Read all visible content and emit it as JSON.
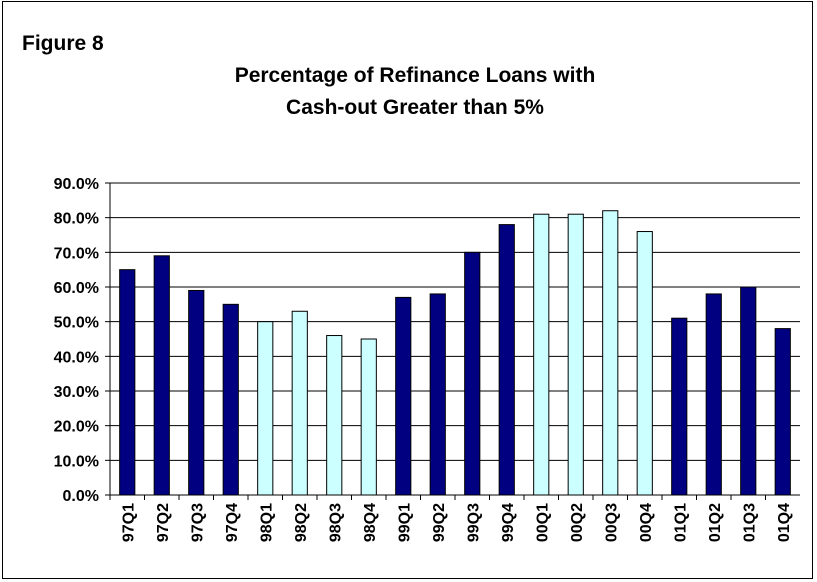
{
  "figure_label": "Figure 8",
  "chart_data": {
    "type": "bar",
    "title_lines": [
      "Percentage of Refinance Loans with",
      "Cash-out Greater than 5%"
    ],
    "categories": [
      "97Q1",
      "97Q2",
      "97Q3",
      "97Q4",
      "98Q1",
      "98Q2",
      "98Q3",
      "98Q4",
      "99Q1",
      "99Q2",
      "99Q3",
      "99Q4",
      "00Q1",
      "00Q2",
      "00Q3",
      "00Q4",
      "01Q1",
      "01Q2",
      "01Q3",
      "01Q4"
    ],
    "values": [
      65,
      69,
      59,
      55,
      50,
      53,
      46,
      45,
      57,
      58,
      70,
      78,
      81,
      81,
      82,
      76,
      51,
      58,
      60,
      48
    ],
    "bar_colors": [
      "#000080",
      "#000080",
      "#000080",
      "#000080",
      "#ccffff",
      "#ccffff",
      "#ccffff",
      "#ccffff",
      "#000080",
      "#000080",
      "#000080",
      "#000080",
      "#ccffff",
      "#ccffff",
      "#ccffff",
      "#ccffff",
      "#000080",
      "#000080",
      "#000080",
      "#000080"
    ],
    "yticks": [
      "0.0%",
      "10.0%",
      "20.0%",
      "30.0%",
      "40.0%",
      "50.0%",
      "60.0%",
      "70.0%",
      "80.0%",
      "90.0%"
    ],
    "ylim": [
      0,
      90
    ],
    "grid": true,
    "legend": "none"
  }
}
